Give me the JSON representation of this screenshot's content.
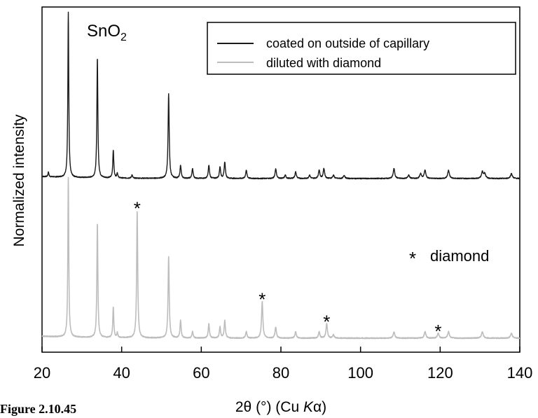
{
  "chart_data": {
    "type": "line",
    "xlabel_main": "2θ (°) (Cu ",
    "xlabel_italic": "K",
    "xlabel_tail": "α)",
    "ylabel": "Normalized intensity",
    "xlim": [
      20,
      140
    ],
    "x_ticks": [
      "20",
      "40",
      "60",
      "80",
      "100",
      "120",
      "140"
    ],
    "sample_label_main": "SnO",
    "sample_label_sub": "2",
    "legend": {
      "placement": "top-right",
      "entries": [
        {
          "label": "coated on outside of capillary",
          "color": "#1a1a1a"
        },
        {
          "label": "diluted with diamond",
          "color": "#bdbdbd"
        }
      ]
    },
    "annotation_star": "*",
    "annotation_text": "diamond",
    "series": [
      {
        "name": "coated on outside of capillary",
        "color": "#1a1a1a",
        "baseline": 0.0,
        "peaks": [
          {
            "x": 21.6,
            "h": 0.03
          },
          {
            "x": 26.6,
            "h": 1.0
          },
          {
            "x": 33.9,
            "h": 0.73
          },
          {
            "x": 37.9,
            "h": 0.17
          },
          {
            "x": 38.9,
            "h": 0.03
          },
          {
            "x": 42.6,
            "h": 0.02
          },
          {
            "x": 51.8,
            "h": 0.51
          },
          {
            "x": 54.8,
            "h": 0.08
          },
          {
            "x": 57.8,
            "h": 0.06
          },
          {
            "x": 61.9,
            "h": 0.08
          },
          {
            "x": 64.7,
            "h": 0.07
          },
          {
            "x": 65.9,
            "h": 0.1
          },
          {
            "x": 71.3,
            "h": 0.05
          },
          {
            "x": 78.7,
            "h": 0.06
          },
          {
            "x": 81.1,
            "h": 0.02
          },
          {
            "x": 83.7,
            "h": 0.04
          },
          {
            "x": 87.2,
            "h": 0.02
          },
          {
            "x": 89.6,
            "h": 0.05
          },
          {
            "x": 90.8,
            "h": 0.06
          },
          {
            "x": 93.2,
            "h": 0.02
          },
          {
            "x": 95.9,
            "h": 0.02
          },
          {
            "x": 108.4,
            "h": 0.06
          },
          {
            "x": 112.1,
            "h": 0.02
          },
          {
            "x": 115.1,
            "h": 0.03
          },
          {
            "x": 116.2,
            "h": 0.05
          },
          {
            "x": 122.1,
            "h": 0.05
          },
          {
            "x": 130.6,
            "h": 0.04
          },
          {
            "x": 131.2,
            "h": 0.03
          },
          {
            "x": 137.9,
            "h": 0.03
          }
        ]
      },
      {
        "name": "diluted with diamond",
        "color": "#bdbdbd",
        "baseline": 0.0,
        "peaks": [
          {
            "x": 26.6,
            "h": 1.0
          },
          {
            "x": 33.9,
            "h": 0.72
          },
          {
            "x": 37.9,
            "h": 0.19
          },
          {
            "x": 38.9,
            "h": 0.03
          },
          {
            "x": 43.9,
            "h": 0.8
          },
          {
            "x": 51.8,
            "h": 0.51
          },
          {
            "x": 54.8,
            "h": 0.11
          },
          {
            "x": 57.8,
            "h": 0.04
          },
          {
            "x": 61.9,
            "h": 0.09
          },
          {
            "x": 64.7,
            "h": 0.07
          },
          {
            "x": 65.9,
            "h": 0.11
          },
          {
            "x": 71.3,
            "h": 0.04
          },
          {
            "x": 75.3,
            "h": 0.23
          },
          {
            "x": 78.7,
            "h": 0.07
          },
          {
            "x": 83.7,
            "h": 0.04
          },
          {
            "x": 89.6,
            "h": 0.04
          },
          {
            "x": 91.5,
            "h": 0.09
          },
          {
            "x": 93.2,
            "h": 0.02
          },
          {
            "x": 108.4,
            "h": 0.04
          },
          {
            "x": 116.2,
            "h": 0.04
          },
          {
            "x": 119.5,
            "h": 0.03
          },
          {
            "x": 122.1,
            "h": 0.04
          },
          {
            "x": 130.6,
            "h": 0.04
          },
          {
            "x": 137.9,
            "h": 0.03
          }
        ]
      }
    ],
    "diamond_peaks_x": [
      43.9,
      75.3,
      91.5,
      119.5
    ]
  },
  "figure_caption": "Figure 2.10.45"
}
